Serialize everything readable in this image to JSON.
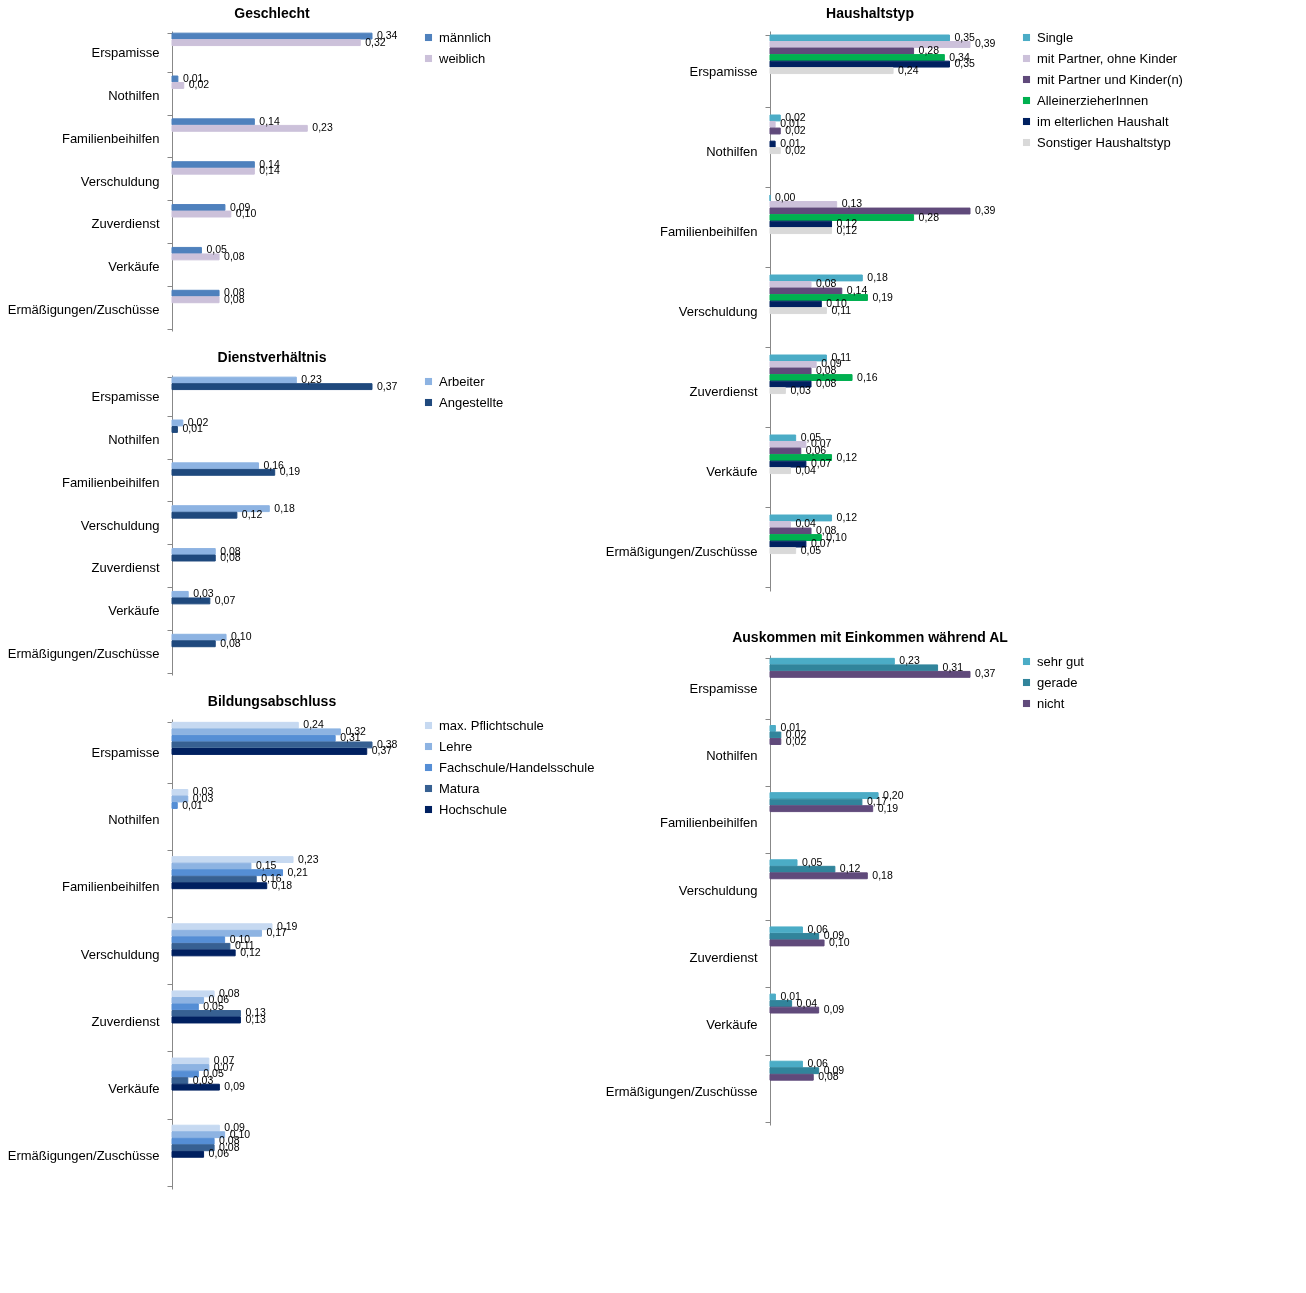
{
  "chart_data": [
    {
      "type": "bar",
      "orientation": "horizontal",
      "title": "Geschlecht",
      "categories": [
        "Erspamisse",
        "Nothilfen",
        "Familienbeihilfen",
        "Verschuldung",
        "Zuverdienst",
        "Verkäufe",
        "Ermäßigungen/Zuschüsse"
      ],
      "legend": "right",
      "tick_labels": "y",
      "grid": false,
      "series": [
        {
          "name": "männlich",
          "color": "#4f81bd",
          "values": [
            0.34,
            0.01,
            0.14,
            0.14,
            0.09,
            0.05,
            0.08
          ],
          "value_labels": [
            "0,34",
            "0,01",
            "0,14",
            "0,14",
            "0,09",
            "0,05",
            "0,08"
          ]
        },
        {
          "name": "weiblich",
          "color": "#ccc1da",
          "values": [
            0.32,
            0.02,
            0.23,
            0.14,
            0.1,
            0.08,
            0.08
          ],
          "value_labels": [
            "0,32",
            "0,02",
            "0,23",
            "0,14",
            "0,10",
            "0,08",
            "0,08"
          ]
        }
      ]
    },
    {
      "type": "bar",
      "orientation": "horizontal",
      "title": "Haushaltstyp",
      "categories": [
        "Erspamisse",
        "Nothilfen",
        "Familienbeihilfen",
        "Verschuldung",
        "Zuverdienst",
        "Verkäufe",
        "Ermäßigungen/Zuschüsse"
      ],
      "legend": "right",
      "tick_labels": "y",
      "grid": false,
      "series": [
        {
          "name": "Single",
          "color": "#4bacc6",
          "values": [
            0.35,
            0.02,
            0.0,
            0.18,
            0.11,
            0.05,
            0.12
          ],
          "value_labels": [
            "0,35",
            "0,02",
            "0,00",
            "0,18",
            "0,11",
            "0,05",
            "0,12"
          ]
        },
        {
          "name": "mit Partner,  ohne Kinder",
          "color": "#ccc1da",
          "values": [
            0.39,
            0.01,
            0.13,
            0.08,
            0.09,
            0.07,
            0.04
          ],
          "value_labels": [
            "0,39",
            "0,01",
            "0,13",
            "0,08",
            "0,09",
            "0,07",
            "0,04"
          ]
        },
        {
          "name": "mit Partner und Kinder(n)",
          "color": "#604a7b",
          "values": [
            0.28,
            0.02,
            0.39,
            0.14,
            0.08,
            0.06,
            0.08
          ],
          "value_labels": [
            "0,28",
            "0,02",
            "0,39",
            "0,14",
            "0,08",
            "0,06",
            "0,08"
          ]
        },
        {
          "name": "AlleinerzieherInnen",
          "color": "#00b050",
          "values": [
            0.34,
            null,
            0.28,
            0.19,
            0.16,
            0.12,
            0.1
          ],
          "value_labels": [
            "0,34",
            null,
            "0,28",
            "0,19",
            "0,16",
            "0,12",
            "0,10"
          ]
        },
        {
          "name": "im elterlichen Haushalt",
          "color": "#002060",
          "values": [
            0.35,
            0.01,
            0.12,
            0.1,
            0.08,
            0.07,
            0.07
          ],
          "value_labels": [
            "0,35",
            "0,01",
            "0,12",
            "0,10",
            "0,08",
            "0,07",
            "0,07"
          ]
        },
        {
          "name": "Sonstiger Haushaltstyp",
          "color": "#d9d9d9",
          "values": [
            0.24,
            0.02,
            0.12,
            0.11,
            0.03,
            0.04,
            0.05
          ],
          "value_labels": [
            "0,24",
            "0,02",
            "0,12",
            "0,11",
            "0,03",
            "0,04",
            "0,05"
          ]
        }
      ]
    },
    {
      "type": "bar",
      "orientation": "horizontal",
      "title": "Dienstverhältnis",
      "categories": [
        "Erspamisse",
        "Nothilfen",
        "Familienbeihilfen",
        "Verschuldung",
        "Zuverdienst",
        "Verkäufe",
        "Ermäßigungen/Zuschüsse"
      ],
      "legend": "right",
      "tick_labels": "y",
      "grid": false,
      "series": [
        {
          "name": "Arbeiter",
          "color": "#8db3e2",
          "values": [
            0.23,
            0.02,
            0.16,
            0.18,
            0.08,
            0.03,
            0.1
          ],
          "value_labels": [
            "0,23",
            "0,02",
            "0,16",
            "0,18",
            "0,08",
            "0,03",
            "0,10"
          ]
        },
        {
          "name": "Angestellte",
          "color": "#1f497d",
          "values": [
            0.37,
            0.01,
            0.19,
            0.12,
            0.08,
            0.07,
            0.08
          ],
          "value_labels": [
            "0,37",
            "0,01",
            "0,19",
            "0,12",
            "0,08",
            "0,07",
            "0,08"
          ]
        }
      ]
    },
    {
      "type": "bar",
      "orientation": "horizontal",
      "title": "Auskommen mit Einkommen während AL",
      "categories": [
        "Erspamisse",
        "Nothilfen",
        "Familienbeihilfen",
        "Verschuldung",
        "Zuverdienst",
        "Verkäufe",
        "Ermäßigungen/Zuschüsse"
      ],
      "legend": "right",
      "tick_labels": "y",
      "grid": false,
      "series": [
        {
          "name": "sehr gut",
          "color": "#4bacc6",
          "values": [
            0.23,
            0.01,
            0.2,
            0.05,
            0.06,
            0.01,
            0.06
          ],
          "value_labels": [
            "0,23",
            "0,01",
            "0,20",
            "0,05",
            "0,06",
            "0,01",
            "0,06"
          ]
        },
        {
          "name": "gerade",
          "color": "#31849b",
          "values": [
            0.31,
            0.02,
            0.17,
            0.12,
            0.09,
            0.04,
            0.09
          ],
          "value_labels": [
            "0,31",
            "0,02",
            "0,17",
            "0,12",
            "0,09",
            "0,04",
            "0,09"
          ]
        },
        {
          "name": "nicht",
          "color": "#604a7b",
          "values": [
            0.37,
            0.02,
            0.19,
            0.18,
            0.1,
            0.09,
            0.08
          ],
          "value_labels": [
            "0,37",
            "0,02",
            "0,19",
            "0,18",
            "0,10",
            "0,09",
            "0,08"
          ]
        }
      ]
    },
    {
      "type": "bar",
      "orientation": "horizontal",
      "title": "Bildungsabschluss",
      "categories": [
        "Erspamisse",
        "Nothilfen",
        "Familienbeihilfen",
        "Verschuldung",
        "Zuverdienst",
        "Verkäufe",
        "Ermäßigungen/Zuschüsse"
      ],
      "legend": "right",
      "tick_labels": "y",
      "grid": false,
      "series": [
        {
          "name": "max. Pflichtschule",
          "color": "#c6d9f1",
          "values": [
            0.24,
            0.03,
            0.23,
            0.19,
            0.08,
            0.07,
            0.09
          ],
          "value_labels": [
            "0,24",
            "0,03",
            "0,23",
            "0,19",
            "0,08",
            "0,07",
            "0,09"
          ]
        },
        {
          "name": "Lehre",
          "color": "#8db3e2",
          "values": [
            0.32,
            0.03,
            0.15,
            0.17,
            0.06,
            0.07,
            0.1
          ],
          "value_labels": [
            "0,32",
            "0,03",
            "0,15",
            "0,17",
            "0,06",
            "0,07",
            "0,10"
          ]
        },
        {
          "name": "Fachschule/Handelsschule",
          "color": "#558ed5",
          "values": [
            0.31,
            0.01,
            0.21,
            0.1,
            0.05,
            0.05,
            0.08
          ],
          "value_labels": [
            "0,31",
            "0,01",
            "0,21",
            "0,10",
            "0,05",
            "0,05",
            "0,08"
          ]
        },
        {
          "name": "Matura",
          "color": "#376092",
          "values": [
            0.38,
            null,
            0.16,
            0.11,
            0.13,
            0.03,
            0.08
          ],
          "value_labels": [
            "0,38",
            null,
            "0,16",
            "0,11",
            "0,13",
            "0,03",
            "0,08"
          ]
        },
        {
          "name": "Hochschule",
          "color": "#002060",
          "values": [
            0.37,
            null,
            0.18,
            0.12,
            0.13,
            0.09,
            0.06
          ],
          "value_labels": [
            "0,37",
            null,
            "0,18",
            "0,12",
            "0,13",
            "0,09",
            "0,06"
          ]
        }
      ]
    }
  ]
}
